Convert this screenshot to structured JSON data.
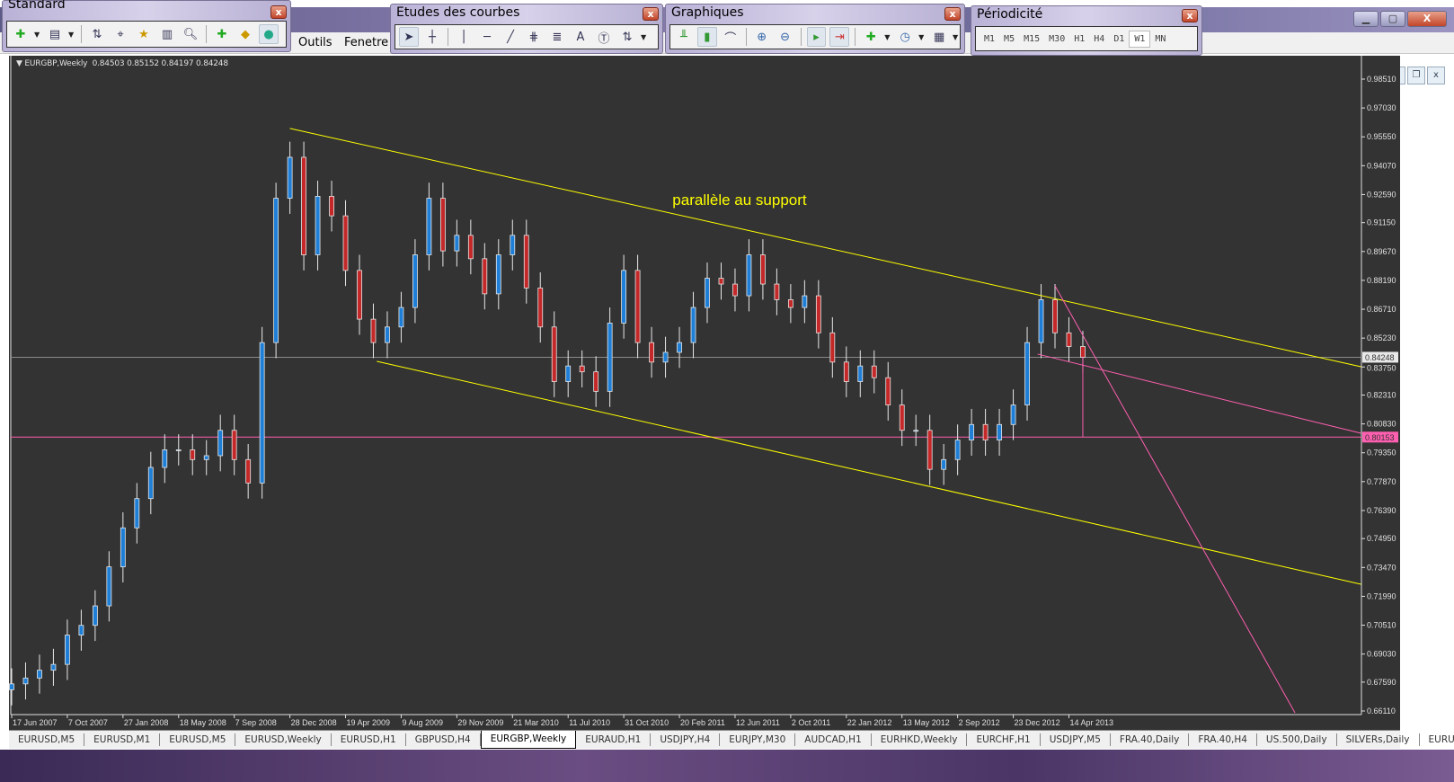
{
  "window": {
    "minimize_icon": "minimize-icon",
    "maximize_icon": "maximize-icon",
    "close_icon": "close-icon"
  },
  "menu": {
    "items": [
      "Outils",
      "Fenetre"
    ]
  },
  "toolbars": {
    "standard": {
      "title": "Standard",
      "icons": [
        "new-chart-icon",
        "profiles-icon",
        "market-watch-icon",
        "crosshair-icon",
        "favorites-icon",
        "navigator-icon",
        "strategy-tester-icon",
        "new-order-icon",
        "alert-icon",
        "autotrading-icon"
      ]
    },
    "studies": {
      "title": "Etudes des courbes",
      "icons": [
        "cursor-icon",
        "crosshair-icon",
        "vertical-line-icon",
        "horizontal-line-icon",
        "trendline-icon",
        "fibonacci-icon",
        "fibonacci-fan-icon",
        "text-icon",
        "text-label-icon",
        "arrows-icon"
      ],
      "text_tool": "A"
    },
    "charts": {
      "title": "Graphiques",
      "icons": [
        "bar-chart-icon",
        "candlestick-icon",
        "line-chart-icon",
        "zoom-in-icon",
        "zoom-out-icon",
        "autoscroll-icon",
        "chart-shift-icon",
        "indicators-icon",
        "periods-icon",
        "templates-icon"
      ]
    },
    "periodicity": {
      "title": "Périodicité",
      "items": [
        "M1",
        "M5",
        "M15",
        "M30",
        "H1",
        "H4",
        "D1",
        "W1",
        "MN"
      ],
      "selected": "W1"
    }
  },
  "chart": {
    "symbol_label": "EURGBP,Weekly",
    "ohlc": "0.84503 0.85152 0.84197 0.84248",
    "background": "#333333",
    "up_color": "#1f7fd6",
    "down_color": "#c42828",
    "wick_color": "#e8e8e8",
    "annotation": {
      "text": "parallèle au support",
      "date": "2011-02-06",
      "price": 0.9205,
      "color": "#ffff00"
    },
    "current_price": {
      "label": "0.84248",
      "value": 0.84248
    },
    "level_line": {
      "label": "0.80153",
      "value": 0.80153,
      "color": "#ff5fb0"
    }
  },
  "chart_data": {
    "type": "candlestick",
    "title": "",
    "interval_weeks": 4,
    "start_date": "2007-06-17",
    "closes": [
      0.675,
      0.678,
      0.682,
      0.685,
      0.7,
      0.705,
      0.715,
      0.735,
      0.755,
      0.77,
      0.786,
      0.795,
      0.795,
      0.79,
      0.792,
      0.805,
      0.79,
      0.778,
      0.85,
      0.924,
      0.945,
      0.895,
      0.925,
      0.915,
      0.887,
      0.862,
      0.85,
      0.858,
      0.868,
      0.895,
      0.924,
      0.897,
      0.905,
      0.893,
      0.875,
      0.895,
      0.905,
      0.878,
      0.858,
      0.83,
      0.838,
      0.835,
      0.825,
      0.86,
      0.887,
      0.85,
      0.84,
      0.845,
      0.85,
      0.868,
      0.883,
      0.88,
      0.874,
      0.895,
      0.88,
      0.872,
      0.868,
      0.874,
      0.855,
      0.84,
      0.83,
      0.838,
      0.832,
      0.818,
      0.805,
      0.805,
      0.785,
      0.79,
      0.8,
      0.808,
      0.8,
      0.808,
      0.818,
      0.85,
      0.872,
      0.855,
      0.848,
      0.84248
    ],
    "x_ticks": [
      "17 Jun 2007",
      "7 Oct 2007",
      "27 Jan 2008",
      "18 May 2008",
      "7 Sep 2008",
      "28 Dec 2008",
      "19 Apr 2009",
      "9 Aug 2009",
      "29 Nov 2009",
      "21 Mar 2010",
      "11 Jul 2010",
      "31 Oct 2010",
      "20 Feb 2011",
      "12 Jun 2011",
      "2 Oct 2011",
      "22 Jan 2012",
      "13 May 2012",
      "2 Sep 2012",
      "23 Dec 2012",
      "14 Apr 2013"
    ],
    "y_ticks": [
      "0.98510",
      "0.97030",
      "0.95550",
      "0.94070",
      "0.92590",
      "0.91150",
      "0.89670",
      "0.88190",
      "0.86710",
      "0.85230",
      "0.83750",
      "0.82310",
      "0.80830",
      "0.79350",
      "0.77870",
      "0.76390",
      "0.74950",
      "0.73470",
      "0.71990",
      "0.70510",
      "0.69030",
      "0.67590",
      "0.66110"
    ],
    "ylim": [
      0.6611,
      0.9851
    ],
    "trendlines": [
      {
        "name": "upper-channel-line",
        "color": "#ffff00",
        "from": [
          "2008-12-28",
          0.9598
        ],
        "to": [
          "2014-11-23",
          0.8376
        ]
      },
      {
        "name": "lower-channel-line",
        "color": "#ffff00",
        "from": [
          "2009-06-21",
          0.8404
        ],
        "to": [
          "2014-11-23",
          0.7261
        ]
      },
      {
        "name": "support-line",
        "color": "#ff5fb0",
        "from": [
          "2013-02-10",
          0.8441
        ],
        "to": [
          "2014-11-23",
          0.8035
        ]
      },
      {
        "name": "steep-trendline",
        "color": "#ff5fb0",
        "from": [
          "2013-03-17",
          0.8791
        ],
        "to": [
          "2014-07-13",
          0.6602
        ]
      },
      {
        "name": "vertical-marker-line",
        "color": "#ff5fb0",
        "from": [
          "2013-05-12",
          0.8425
        ],
        "to": [
          "2013-05-12",
          0.80153
        ]
      }
    ]
  },
  "tabs": {
    "items": [
      "EURUSD,M5",
      "EURUSD,M1",
      "EURUSD,M5",
      "EURUSD,Weekly",
      "EURUSD,H1",
      "GBPUSD,H4",
      "EURGBP,Weekly",
      "EURAUD,H1",
      "USDJPY,H4",
      "EURJPY,M30",
      "AUDCAD,H1",
      "EURHKD,Weekly",
      "EURCHF,H1",
      "USDJPY,M5",
      "FRA.40,Daily",
      "FRA.40,H4",
      "US.500,Daily",
      "SILVERs,Daily",
      "EURUSD"
    ],
    "active": 6,
    "scroll_left": "◂",
    "scroll_right": "▸"
  }
}
